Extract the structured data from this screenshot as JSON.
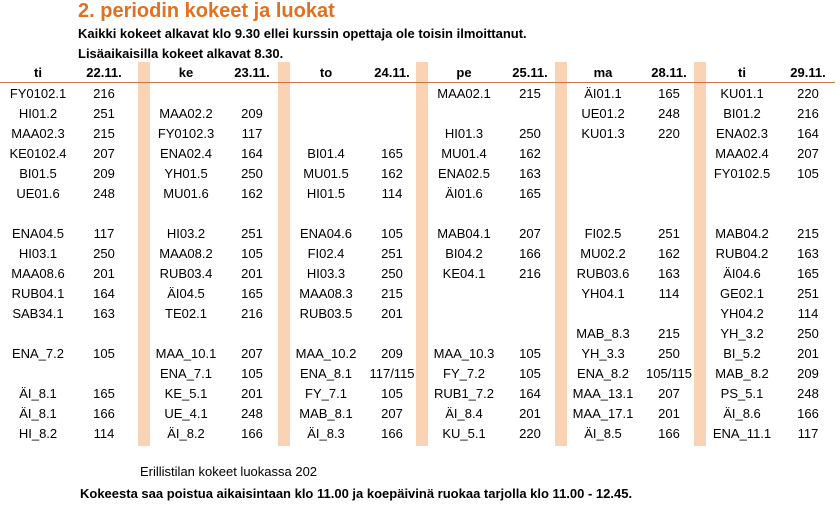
{
  "title": "2. periodin kokeet ja luokat",
  "subtitle1": "Kaikki kokeet alkavat klo 9.30 ellei kurssin opettaja ole toisin ilmoittanut.",
  "subtitle2": "Lisäaikaisilla kokeet alkavat 8.30.",
  "days": [
    {
      "day": "ti",
      "date": "22.11.",
      "entries": [
        [
          "FY0102.1",
          "216"
        ],
        [
          "HI01.2",
          "251"
        ],
        [
          "MAA02.3",
          "215"
        ],
        [
          "KE0102.4",
          "207"
        ],
        [
          "BI01.5",
          "209"
        ],
        [
          "UE01.6",
          "248"
        ],
        null,
        [
          "ENA04.5",
          "117"
        ],
        [
          "HI03.1",
          "250"
        ],
        [
          "MAA08.6",
          "201"
        ],
        [
          "RUB04.1",
          "164"
        ],
        [
          "SAB34.1",
          "163"
        ],
        null,
        [
          "ENA_7.2",
          "105"
        ],
        null,
        [
          "ÄI_8.1",
          "165"
        ],
        [
          "ÄI_8.1",
          "166"
        ],
        [
          "HI_8.2",
          "114"
        ]
      ]
    },
    {
      "day": "ke",
      "date": "23.11.",
      "entries": [
        null,
        [
          "MAA02.2",
          "209"
        ],
        [
          "FY0102.3",
          "117"
        ],
        [
          "ENA02.4",
          "164"
        ],
        [
          "YH01.5",
          "250"
        ],
        [
          "MU01.6",
          "162"
        ],
        null,
        [
          "HI03.2",
          "251"
        ],
        [
          "MAA08.2",
          "105"
        ],
        [
          "RUB03.4",
          "201"
        ],
        [
          "ÄI04.5",
          "165"
        ],
        [
          "TE02.1",
          "216"
        ],
        null,
        [
          "MAA_10.1",
          "207"
        ],
        [
          "ENA_7.1",
          "105"
        ],
        [
          "KE_5.1",
          "201"
        ],
        [
          "UE_4.1",
          "248"
        ],
        [
          "ÄI_8.2",
          "166"
        ]
      ]
    },
    {
      "day": "to",
      "date": "24.11.",
      "entries": [
        null,
        null,
        null,
        [
          "BI01.4",
          "165"
        ],
        [
          "MU01.5",
          "162"
        ],
        [
          "HI01.5",
          "114"
        ],
        null,
        [
          "ENA04.6",
          "105"
        ],
        [
          "FI02.4",
          "251"
        ],
        [
          "HI03.3",
          "250"
        ],
        [
          "MAA08.3",
          "215"
        ],
        [
          "RUB03.5",
          "201"
        ],
        null,
        [
          "MAA_10.2",
          "209"
        ],
        [
          "ENA_8.1",
          "117/115"
        ],
        [
          "FY_7.1",
          "105"
        ],
        [
          "MAB_8.1",
          "207"
        ],
        [
          "ÄI_8.3",
          "166"
        ]
      ]
    },
    {
      "day": "pe",
      "date": "25.11.",
      "entries": [
        [
          "MAA02.1",
          "215"
        ],
        null,
        [
          "HI01.3",
          "250"
        ],
        [
          "MU01.4",
          "162"
        ],
        [
          "ENA02.5",
          "163"
        ],
        [
          "ÄI01.6",
          "165"
        ],
        null,
        [
          "MAB04.1",
          "207"
        ],
        [
          "BI04.2",
          "166"
        ],
        [
          "KE04.1",
          "216"
        ],
        null,
        null,
        null,
        [
          "MAA_10.3",
          "105"
        ],
        [
          "FY_7.2",
          "105"
        ],
        [
          "RUB1_7.2",
          "164"
        ],
        [
          "ÄI_8.4",
          "201"
        ],
        [
          "KU_5.1",
          "220"
        ]
      ]
    },
    {
      "day": "ma",
      "date": "28.11.",
      "entries": [
        [
          "ÄI01.1",
          "165"
        ],
        [
          "UE01.2",
          "248"
        ],
        [
          "KU01.3",
          "220"
        ],
        null,
        null,
        null,
        null,
        [
          "FI02.5",
          "251"
        ],
        [
          "MU02.2",
          "162"
        ],
        [
          "RUB03.6",
          "163"
        ],
        [
          "YH04.1",
          "114"
        ],
        null,
        [
          "MAB_8.3",
          "215"
        ],
        [
          "YH_3.3",
          "250"
        ],
        [
          "ENA_8.2",
          "105/115"
        ],
        [
          "MAA_13.1",
          "207"
        ],
        [
          "MAA_17.1",
          "201"
        ],
        [
          "ÄI_8.5",
          "166"
        ]
      ]
    },
    {
      "day": "ti",
      "date": "29.11.",
      "entries": [
        [
          "KU01.1",
          "220"
        ],
        [
          "BI01.2",
          "216"
        ],
        [
          "ENA02.3",
          "164"
        ],
        [
          "MAA02.4",
          "207"
        ],
        [
          "FY0102.5",
          "105"
        ],
        null,
        null,
        [
          "MAB04.2",
          "215"
        ],
        [
          "RUB04.2",
          "163"
        ],
        [
          "ÄI04.6",
          "165"
        ],
        [
          "GE02.1",
          "251"
        ],
        [
          "YH04.2",
          "114"
        ],
        [
          "YH_3.2",
          "250"
        ],
        [
          "BI_5.2",
          "201"
        ],
        [
          "MAB_8.2",
          "209"
        ],
        [
          "PS_5.1",
          "248"
        ],
        [
          "ÄI_8.6",
          "166"
        ],
        [
          "ENA_11.1",
          "117"
        ]
      ]
    }
  ],
  "note": "Erillistilan kokeet luokassa 202",
  "footer": "Kokeesta saa poistua aikaisintaan klo 11.00 ja koepäivinä ruokaa tarjolla klo 11.00 - 12.45."
}
